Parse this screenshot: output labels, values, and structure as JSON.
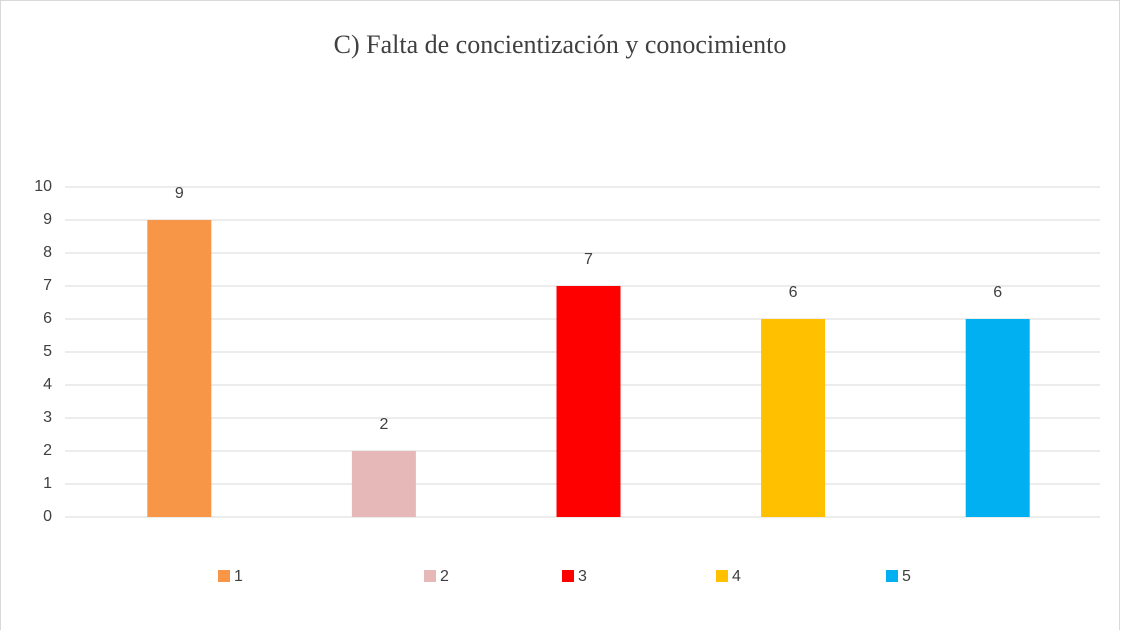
{
  "chart_data": {
    "type": "bar",
    "title": "C) Falta de concientización y conocimiento",
    "categories": [
      "1",
      "2",
      "3",
      "4",
      "5"
    ],
    "values": [
      9,
      2,
      7,
      6,
      6
    ],
    "colors": [
      "#f79646",
      "#e6b9b8",
      "#ff0000",
      "#ffc000",
      "#00b0f0"
    ],
    "ylim": [
      0,
      10
    ],
    "yticks": [
      0,
      1,
      2,
      3,
      4,
      5,
      6,
      7,
      8,
      9,
      10
    ],
    "grid": true,
    "legend": "bottom"
  }
}
